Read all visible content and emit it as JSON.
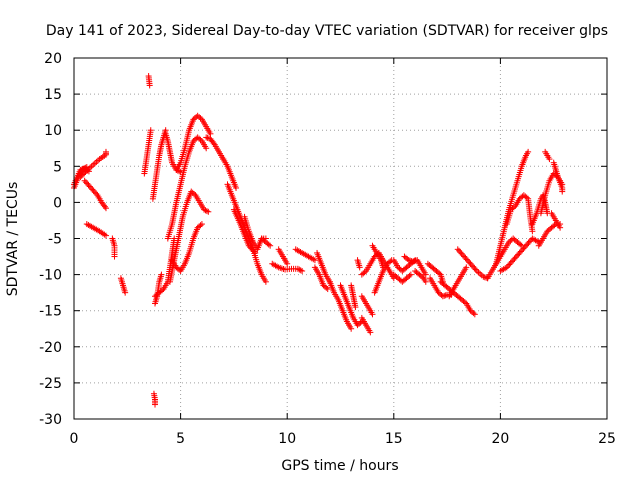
{
  "chart_data": {
    "type": "scatter",
    "title": "Day 141 of 2023, Sidereal Day-to-day VTEC variation (SDTVAR) for receiver glps",
    "xlabel": "GPS time / hours",
    "ylabel": "SDTVAR / TECUs",
    "xlim": [
      0,
      25
    ],
    "ylim": [
      -30,
      20
    ],
    "xticks": [
      0,
      5,
      10,
      15,
      20,
      25
    ],
    "yticks": [
      -30,
      -25,
      -20,
      -15,
      -10,
      -5,
      0,
      5,
      10,
      15,
      20
    ],
    "grid": true,
    "marker": "+",
    "color": "#ff0000",
    "arcs": [
      [
        [
          0.0,
          2.0
        ],
        [
          0.2,
          3.5
        ],
        [
          0.4,
          4.6
        ],
        [
          0.6,
          4.9
        ]
      ],
      [
        [
          0.0,
          2.5
        ],
        [
          0.3,
          4.5
        ],
        [
          0.5,
          4.7
        ],
        [
          0.7,
          4.3
        ]
      ],
      [
        [
          0.3,
          3.5
        ],
        [
          0.6,
          4.4
        ],
        [
          0.9,
          5.2
        ],
        [
          1.2,
          6.0
        ],
        [
          1.5,
          6.6
        ],
        [
          1.5,
          7.0
        ]
      ],
      [
        [
          0.5,
          3.0
        ],
        [
          0.8,
          2.0
        ],
        [
          1.1,
          1.0
        ],
        [
          1.3,
          0.0
        ],
        [
          1.5,
          -0.8
        ]
      ],
      [
        [
          0.6,
          -3.0
        ],
        [
          0.9,
          -3.5
        ],
        [
          1.2,
          -4.0
        ],
        [
          1.5,
          -4.6
        ]
      ],
      [
        [
          1.8,
          -5.0
        ],
        [
          1.9,
          -6.0
        ],
        [
          1.9,
          -7.5
        ]
      ],
      [
        [
          2.2,
          -10.5
        ],
        [
          2.3,
          -11.5
        ],
        [
          2.4,
          -12.5
        ]
      ],
      [
        [
          3.3,
          4.0
        ],
        [
          3.4,
          6.0
        ],
        [
          3.5,
          8.0
        ],
        [
          3.6,
          10.0
        ]
      ],
      [
        [
          3.5,
          17.5
        ],
        [
          3.55,
          16.2
        ]
      ],
      [
        [
          3.75,
          -26.5
        ],
        [
          3.8,
          -27.3
        ],
        [
          3.8,
          -28.0
        ]
      ],
      [
        [
          3.7,
          0.5
        ],
        [
          3.8,
          2.5
        ],
        [
          3.9,
          4.5
        ],
        [
          4.0,
          6.5
        ],
        [
          4.1,
          8.0
        ],
        [
          4.2,
          9.0
        ],
        [
          4.3,
          10.0
        ]
      ],
      [
        [
          3.8,
          -14.0
        ],
        [
          3.9,
          -13.0
        ],
        [
          4.0,
          -11.0
        ],
        [
          4.1,
          -10.0
        ]
      ],
      [
        [
          3.8,
          -13.0
        ],
        [
          4.0,
          -12.5
        ],
        [
          4.2,
          -12.0
        ],
        [
          4.4,
          -11.0
        ],
        [
          4.5,
          -9.0
        ],
        [
          4.6,
          -7.0
        ],
        [
          4.7,
          -5.0
        ]
      ],
      [
        [
          4.3,
          9.5
        ],
        [
          4.4,
          8.5
        ],
        [
          4.5,
          7.0
        ],
        [
          4.6,
          5.5
        ],
        [
          4.8,
          4.5
        ],
        [
          5.0,
          4.2
        ]
      ],
      [
        [
          4.5,
          -11.0
        ],
        [
          4.7,
          -8.0
        ],
        [
          4.9,
          -5.0
        ],
        [
          5.1,
          -2.0
        ],
        [
          5.3,
          0.0
        ],
        [
          5.5,
          1.5
        ],
        [
          5.7,
          1.0
        ],
        [
          5.9,
          0.0
        ],
        [
          6.1,
          -1.0
        ],
        [
          6.3,
          -1.3
        ]
      ],
      [
        [
          4.4,
          -5.0
        ],
        [
          4.6,
          -3.0
        ],
        [
          4.8,
          0.0
        ],
        [
          5.0,
          2.5
        ],
        [
          5.2,
          5.0
        ],
        [
          5.4,
          7.0
        ],
        [
          5.6,
          8.5
        ],
        [
          5.8,
          9.0
        ],
        [
          6.0,
          8.5
        ],
        [
          6.2,
          7.5
        ]
      ],
      [
        [
          4.8,
          4.5
        ],
        [
          5.0,
          5.5
        ],
        [
          5.2,
          7.5
        ],
        [
          5.4,
          10.0
        ],
        [
          5.6,
          11.5
        ],
        [
          5.8,
          12.0
        ],
        [
          6.0,
          11.5
        ],
        [
          6.2,
          10.5
        ],
        [
          6.4,
          9.5
        ]
      ],
      [
        [
          4.6,
          -8.0
        ],
        [
          4.8,
          -9.0
        ],
        [
          5.0,
          -9.5
        ],
        [
          5.2,
          -8.5
        ],
        [
          5.4,
          -7.0
        ],
        [
          5.6,
          -5.0
        ],
        [
          5.8,
          -3.5
        ],
        [
          6.0,
          -3.0
        ]
      ],
      [
        [
          6.2,
          9.0
        ],
        [
          6.4,
          8.8
        ],
        [
          6.6,
          8.0
        ],
        [
          6.8,
          7.0
        ],
        [
          7.0,
          6.0
        ]
      ],
      [
        [
          7.0,
          6.0
        ],
        [
          7.2,
          5.0
        ],
        [
          7.4,
          3.5
        ],
        [
          7.6,
          2.0
        ]
      ],
      [
        [
          7.2,
          2.5
        ],
        [
          7.4,
          1.0
        ],
        [
          7.6,
          -0.5
        ],
        [
          7.8,
          -2.0
        ],
        [
          8.0,
          -3.5
        ],
        [
          8.2,
          -5.0
        ],
        [
          8.4,
          -6.5
        ],
        [
          8.6,
          -8.5
        ],
        [
          8.8,
          -10.0
        ],
        [
          9.0,
          -11.0
        ]
      ],
      [
        [
          7.5,
          -1.0
        ],
        [
          7.8,
          -3.0
        ],
        [
          8.0,
          -4.5
        ],
        [
          8.2,
          -6.0
        ],
        [
          8.5,
          -7.0
        ]
      ],
      [
        [
          8.0,
          -2.0
        ],
        [
          8.2,
          -4.0
        ],
        [
          8.4,
          -5.5
        ],
        [
          8.6,
          -6.5
        ],
        [
          8.8,
          -5.0
        ],
        [
          9.0,
          -5.0
        ]
      ],
      [
        [
          8.8,
          -5.0
        ],
        [
          9.0,
          -5.5
        ],
        [
          9.2,
          -6.0
        ]
      ],
      [
        [
          9.6,
          -6.5
        ],
        [
          9.8,
          -7.5
        ],
        [
          10.0,
          -8.5
        ]
      ],
      [
        [
          9.3,
          -8.5
        ],
        [
          9.6,
          -9.0
        ],
        [
          9.9,
          -9.3
        ],
        [
          10.2,
          -9.2
        ],
        [
          10.5,
          -9.2
        ],
        [
          10.7,
          -9.5
        ]
      ],
      [
        [
          10.4,
          -6.5
        ],
        [
          10.7,
          -7.0
        ],
        [
          11.0,
          -7.5
        ],
        [
          11.3,
          -8.0
        ]
      ],
      [
        [
          11.4,
          -7.0
        ],
        [
          11.6,
          -8.5
        ],
        [
          11.8,
          -10.0
        ],
        [
          12.0,
          -11.0
        ]
      ],
      [
        [
          11.3,
          -9.0
        ],
        [
          11.5,
          -10.0
        ],
        [
          11.7,
          -11.5
        ],
        [
          11.9,
          -12.0
        ]
      ],
      [
        [
          12.0,
          -11.0
        ],
        [
          12.2,
          -12.5
        ],
        [
          12.4,
          -13.5
        ],
        [
          12.6,
          -15.0
        ],
        [
          12.8,
          -16.5
        ],
        [
          13.0,
          -17.5
        ]
      ],
      [
        [
          12.5,
          -11.5
        ],
        [
          12.7,
          -13.0
        ],
        [
          12.9,
          -14.5
        ],
        [
          13.1,
          -16.0
        ],
        [
          13.3,
          -17.0
        ],
        [
          13.5,
          -16.5
        ]
      ],
      [
        [
          13.0,
          -11.5
        ],
        [
          13.1,
          -13.0
        ],
        [
          13.2,
          -14.5
        ]
      ],
      [
        [
          13.5,
          -16.0
        ],
        [
          13.7,
          -17.0
        ],
        [
          13.9,
          -18.0
        ]
      ],
      [
        [
          13.3,
          -8.0
        ],
        [
          13.4,
          -9.0
        ]
      ],
      [
        [
          13.5,
          -10.0
        ],
        [
          13.7,
          -9.5
        ],
        [
          13.9,
          -8.5
        ],
        [
          14.1,
          -7.5
        ],
        [
          14.3,
          -7.0
        ],
        [
          14.5,
          -8.0
        ],
        [
          14.7,
          -9.0
        ],
        [
          14.9,
          -10.0
        ],
        [
          15.0,
          -10.5
        ]
      ],
      [
        [
          13.5,
          -13.0
        ],
        [
          13.7,
          -14.0
        ],
        [
          13.9,
          -15.0
        ],
        [
          14.0,
          -15.5
        ]
      ],
      [
        [
          14.0,
          -6.0
        ],
        [
          14.2,
          -7.0
        ],
        [
          14.4,
          -8.0
        ],
        [
          14.5,
          -9.0
        ]
      ],
      [
        [
          14.1,
          -12.5
        ],
        [
          14.3,
          -11.0
        ],
        [
          14.5,
          -9.5
        ],
        [
          14.7,
          -8.5
        ],
        [
          14.9,
          -8.0
        ]
      ],
      [
        [
          15.0,
          -8.0
        ],
        [
          15.2,
          -9.0
        ],
        [
          15.4,
          -9.5
        ],
        [
          15.6,
          -9.0
        ],
        [
          15.8,
          -8.5
        ],
        [
          16.0,
          -8.0
        ]
      ],
      [
        [
          15.0,
          -10.0
        ],
        [
          15.2,
          -10.5
        ],
        [
          15.4,
          -11.0
        ],
        [
          15.6,
          -10.5
        ],
        [
          15.8,
          -10.0
        ]
      ],
      [
        [
          15.5,
          -7.5
        ],
        [
          15.7,
          -8.0
        ],
        [
          15.9,
          -8.2
        ],
        [
          16.1,
          -8.0
        ],
        [
          16.3,
          -9.0
        ],
        [
          16.5,
          -10.0
        ]
      ],
      [
        [
          16.0,
          -9.5
        ],
        [
          16.2,
          -10.0
        ],
        [
          16.4,
          -10.5
        ],
        [
          16.5,
          -11.0
        ]
      ],
      [
        [
          16.6,
          -8.5
        ],
        [
          16.8,
          -9.0
        ],
        [
          17.0,
          -9.5
        ],
        [
          17.2,
          -10.0
        ],
        [
          17.3,
          -11.0
        ]
      ],
      [
        [
          16.7,
          -10.5
        ],
        [
          16.9,
          -11.5
        ],
        [
          17.1,
          -12.5
        ],
        [
          17.3,
          -13.0
        ],
        [
          17.5,
          -12.8
        ],
        [
          17.7,
          -12.8
        ]
      ],
      [
        [
          17.2,
          -11.0
        ],
        [
          17.4,
          -11.5
        ],
        [
          17.6,
          -12.0
        ],
        [
          17.8,
          -12.5
        ],
        [
          18.0,
          -13.0
        ],
        [
          18.2,
          -13.5
        ],
        [
          18.4,
          -14.0
        ],
        [
          18.6,
          -15.0
        ],
        [
          18.8,
          -15.5
        ]
      ],
      [
        [
          17.6,
          -13.0
        ],
        [
          17.8,
          -12.0
        ],
        [
          18.0,
          -11.0
        ],
        [
          18.2,
          -10.0
        ],
        [
          18.4,
          -9.0
        ]
      ],
      [
        [
          18.0,
          -6.5
        ],
        [
          18.3,
          -7.5
        ],
        [
          18.6,
          -8.5
        ],
        [
          18.9,
          -9.5
        ],
        [
          19.2,
          -10.3
        ],
        [
          19.4,
          -10.5
        ]
      ],
      [
        [
          19.4,
          -10.5
        ],
        [
          19.6,
          -9.5
        ],
        [
          19.8,
          -8.5
        ],
        [
          20.0,
          -7.5
        ],
        [
          20.2,
          -6.5
        ],
        [
          20.4,
          -5.5
        ],
        [
          20.6,
          -5.0
        ],
        [
          20.8,
          -5.5
        ],
        [
          21.0,
          -6.0
        ]
      ],
      [
        [
          19.8,
          -8.5
        ],
        [
          20.0,
          -6.0
        ],
        [
          20.2,
          -3.5
        ],
        [
          20.4,
          -1.0
        ],
        [
          20.6,
          1.0
        ],
        [
          20.8,
          3.0
        ],
        [
          21.0,
          5.0
        ],
        [
          21.2,
          6.5
        ],
        [
          21.3,
          7.0
        ]
      ],
      [
        [
          20.3,
          -3.0
        ],
        [
          20.5,
          -1.0
        ],
        [
          20.7,
          -0.5
        ],
        [
          20.9,
          0.5
        ],
        [
          21.1,
          1.0
        ],
        [
          21.3,
          0.5
        ],
        [
          21.4,
          -2.0
        ],
        [
          21.5,
          -4.0
        ]
      ],
      [
        [
          20.0,
          -9.5
        ],
        [
          20.3,
          -9.0
        ],
        [
          20.6,
          -8.0
        ],
        [
          20.9,
          -7.0
        ],
        [
          21.2,
          -6.0
        ],
        [
          21.5,
          -5.0
        ],
        [
          21.8,
          -5.5
        ]
      ],
      [
        [
          21.5,
          -3.0
        ],
        [
          21.7,
          -1.5
        ],
        [
          21.9,
          0.5
        ],
        [
          22.0,
          1.0
        ],
        [
          22.1,
          0.0
        ],
        [
          22.2,
          -1.5
        ]
      ],
      [
        [
          21.8,
          -6.0
        ],
        [
          22.0,
          -5.0
        ],
        [
          22.2,
          -4.0
        ],
        [
          22.4,
          -3.5
        ],
        [
          22.6,
          -3.0
        ],
        [
          22.8,
          -3.0
        ]
      ],
      [
        [
          21.9,
          -1.5
        ],
        [
          22.1,
          1.0
        ],
        [
          22.3,
          3.0
        ],
        [
          22.5,
          4.0
        ],
        [
          22.7,
          3.5
        ],
        [
          22.9,
          2.5
        ]
      ],
      [
        [
          22.1,
          7.0
        ],
        [
          22.3,
          6.0
        ]
      ],
      [
        [
          22.5,
          5.5
        ],
        [
          22.6,
          4.5
        ],
        [
          22.7,
          3.5
        ],
        [
          22.9,
          2.0
        ],
        [
          22.9,
          1.5
        ]
      ],
      [
        [
          22.4,
          -1.5
        ],
        [
          22.6,
          -2.5
        ],
        [
          22.8,
          -3.5
        ]
      ]
    ]
  }
}
